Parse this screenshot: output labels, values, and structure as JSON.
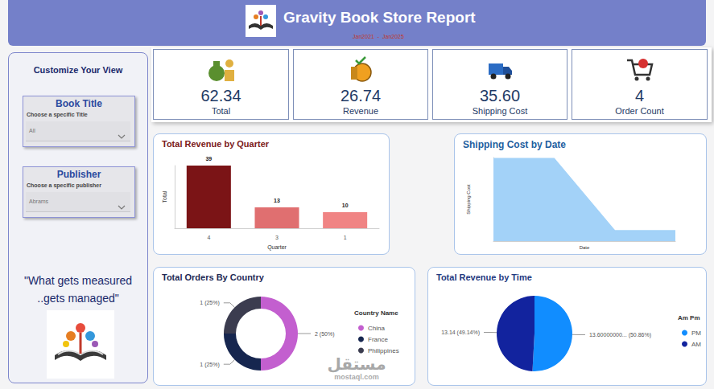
{
  "header": {
    "title": "Gravity Book Store Report",
    "subtitle": "Jan2021  -  Jan2025"
  },
  "sidebar": {
    "heading": "Customize Your View",
    "slicers": [
      {
        "title": "Book Title",
        "prompt": "Choose a specific Title",
        "selected": "All"
      },
      {
        "title": "Publisher",
        "prompt": "Choose a specific publisher",
        "selected": "Abrams"
      }
    ],
    "quote": [
      "\"What gets measured",
      "..gets managed\""
    ]
  },
  "cards": [
    {
      "value": "62.34",
      "label": "Total"
    },
    {
      "value": "26.74",
      "label": "Revenue"
    },
    {
      "value": "35.60",
      "label": "Shipping Cost"
    },
    {
      "value": "4",
      "label": "Order Count"
    }
  ],
  "watermark": [
    "مستقل",
    "mostaql.com"
  ],
  "chart_data": [
    {
      "type": "bar",
      "title": "Total Revenue by Quarter",
      "x_label": "Quarter",
      "y_label": "Total",
      "categories": [
        "4",
        "3",
        "1"
      ],
      "values": [
        39,
        13,
        10
      ],
      "colors": [
        "#7b1416",
        "#e06f70",
        "#f08484"
      ],
      "ylim": [
        0,
        39
      ],
      "data_labels": true,
      "tick_labels": "x",
      "grid": false
    },
    {
      "type": "area",
      "title": "Shipping Cost by Date",
      "x_label": "Date",
      "y_label": "Shipping Cost",
      "categories": [
        null,
        null,
        null,
        null
      ],
      "values": [
        15.8,
        15.8,
        2.0,
        2.0
      ],
      "color": "#a3d2f8",
      "ylim": [
        0,
        16
      ],
      "tick_labels": false,
      "grid": false
    },
    {
      "type": "donut",
      "title": "Total Orders By Country",
      "legend": "right",
      "legend_title": "Country Name",
      "categories": [
        "China",
        "France",
        "Philippines"
      ],
      "values": [
        2,
        1,
        1
      ],
      "value_labels": [
        "2 (50%)",
        "1 (25%)",
        "1 (25%)"
      ],
      "colors": [
        "#c35fcf",
        "#16264f",
        "#3b3c4f"
      ],
      "data_labels": true
    },
    {
      "type": "pie",
      "title": "Total Revenue by Time",
      "legend": "right",
      "legend_title": "Am Pm",
      "categories": [
        "PM",
        "AM"
      ],
      "values": [
        13.6,
        13.14
      ],
      "value_labels": [
        "13.60000000... (50.86%)",
        "13.14 (49.14%)"
      ],
      "colors": [
        "#118dff",
        "#12239e"
      ],
      "data_labels": true
    }
  ]
}
